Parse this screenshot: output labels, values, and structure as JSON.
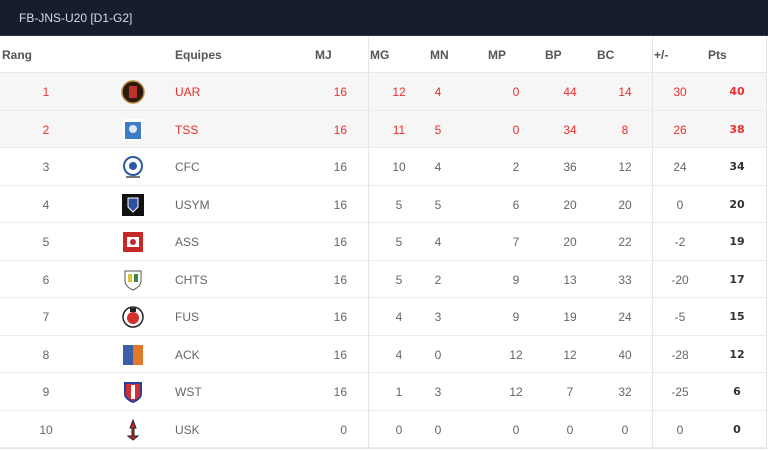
{
  "title": "FB-JNS-U20 [D1-G2]",
  "headers": {
    "rang": "Rang",
    "equipes": "Equipes",
    "mj": "MJ",
    "mg": "MG",
    "mn": "MN",
    "mp": "MP",
    "bp": "BP",
    "bc": "BC",
    "diff": "+/-",
    "pts": "Pts"
  },
  "highlight_color": "#e8302e",
  "rows": [
    {
      "rang": "1",
      "team": "UAR",
      "logo": "uar-crest",
      "mj": "16",
      "mg": "12",
      "mn": "4",
      "mp": "0",
      "bp": "44",
      "bc": "14",
      "diff": "30",
      "pts": "40",
      "highlight": true
    },
    {
      "rang": "2",
      "team": "TSS",
      "logo": "tss-crest",
      "mj": "16",
      "mg": "11",
      "mn": "5",
      "mp": "0",
      "bp": "34",
      "bc": "8",
      "diff": "26",
      "pts": "38",
      "highlight": true
    },
    {
      "rang": "3",
      "team": "CFC",
      "logo": "cfc-crest",
      "mj": "16",
      "mg": "10",
      "mn": "4",
      "mp": "2",
      "bp": "36",
      "bc": "12",
      "diff": "24",
      "pts": "34"
    },
    {
      "rang": "4",
      "team": "USYM",
      "logo": "usym-crest",
      "mj": "16",
      "mg": "5",
      "mn": "5",
      "mp": "6",
      "bp": "20",
      "bc": "20",
      "diff": "0",
      "pts": "20"
    },
    {
      "rang": "5",
      "team": "ASS",
      "logo": "ass-crest",
      "mj": "16",
      "mg": "5",
      "mn": "4",
      "mp": "7",
      "bp": "20",
      "bc": "22",
      "diff": "-2",
      "pts": "19"
    },
    {
      "rang": "6",
      "team": "CHTS",
      "logo": "chts-crest",
      "mj": "16",
      "mg": "5",
      "mn": "2",
      "mp": "9",
      "bp": "13",
      "bc": "33",
      "diff": "-20",
      "pts": "17"
    },
    {
      "rang": "7",
      "team": "FUS",
      "logo": "fus-crest",
      "mj": "16",
      "mg": "4",
      "mn": "3",
      "mp": "9",
      "bp": "19",
      "bc": "24",
      "diff": "-5",
      "pts": "15"
    },
    {
      "rang": "8",
      "team": "ACK",
      "logo": "ack-crest",
      "mj": "16",
      "mg": "4",
      "mn": "0",
      "mp": "12",
      "bp": "12",
      "bc": "40",
      "diff": "-28",
      "pts": "12"
    },
    {
      "rang": "9",
      "team": "WST",
      "logo": "wst-crest",
      "mj": "16",
      "mg": "1",
      "mn": "3",
      "mp": "12",
      "bp": "7",
      "bc": "32",
      "diff": "-25",
      "pts": "6"
    },
    {
      "rang": "10",
      "team": "USK",
      "logo": "usk-crest",
      "mj": "0",
      "mg": "0",
      "mn": "0",
      "mp": "0",
      "bp": "0",
      "bc": "0",
      "diff": "0",
      "pts": "0"
    }
  ]
}
